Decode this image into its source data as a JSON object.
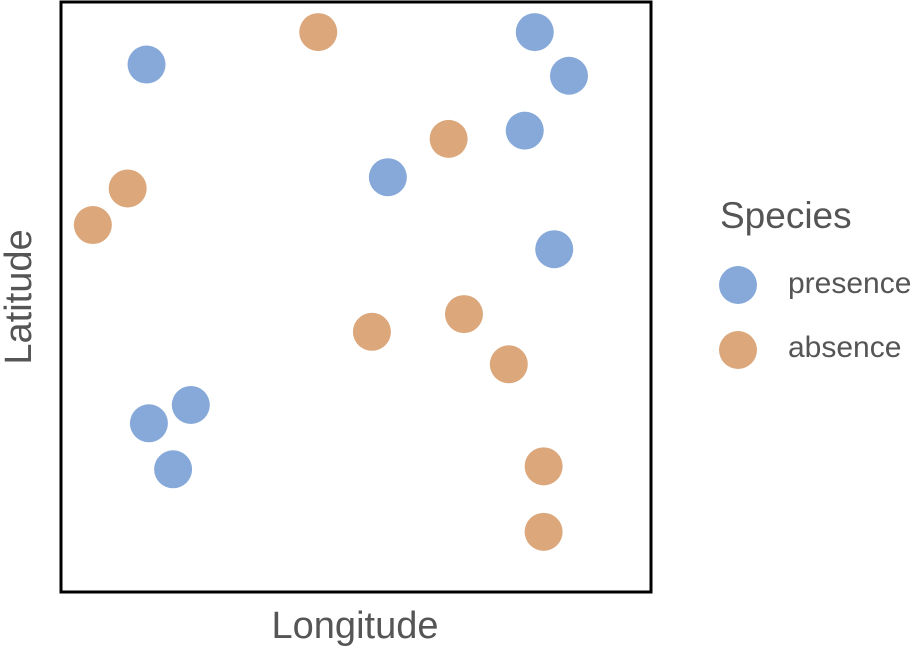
{
  "chart_data": {
    "type": "scatter",
    "title": "",
    "xlabel": "Longitude",
    "ylabel": "Latitude",
    "xlim": [
      0,
      100
    ],
    "ylim": [
      0,
      100
    ],
    "grid": false,
    "legend": {
      "title": "Species",
      "placement": "right"
    },
    "series": [
      {
        "name": "presence",
        "color": "#86A9D9",
        "points": [
          {
            "x": 14.5,
            "y": 89.4
          },
          {
            "x": 80.3,
            "y": 94.9
          },
          {
            "x": 86.1,
            "y": 87.5
          },
          {
            "x": 78.6,
            "y": 78.2
          },
          {
            "x": 55.4,
            "y": 70.3
          },
          {
            "x": 83.6,
            "y": 58.1
          },
          {
            "x": 22.0,
            "y": 31.7
          },
          {
            "x": 14.9,
            "y": 28.6
          },
          {
            "x": 19.0,
            "y": 20.8
          }
        ]
      },
      {
        "name": "absence",
        "color": "#DBA77B",
        "points": [
          {
            "x": 43.6,
            "y": 94.9
          },
          {
            "x": 65.7,
            "y": 76.8
          },
          {
            "x": 11.3,
            "y": 68.4
          },
          {
            "x": 5.4,
            "y": 62.2
          },
          {
            "x": 52.7,
            "y": 44.1
          },
          {
            "x": 68.3,
            "y": 47.1
          },
          {
            "x": 75.9,
            "y": 38.6
          },
          {
            "x": 81.8,
            "y": 21.3
          },
          {
            "x": 81.8,
            "y": 10.2
          }
        ]
      }
    ]
  }
}
